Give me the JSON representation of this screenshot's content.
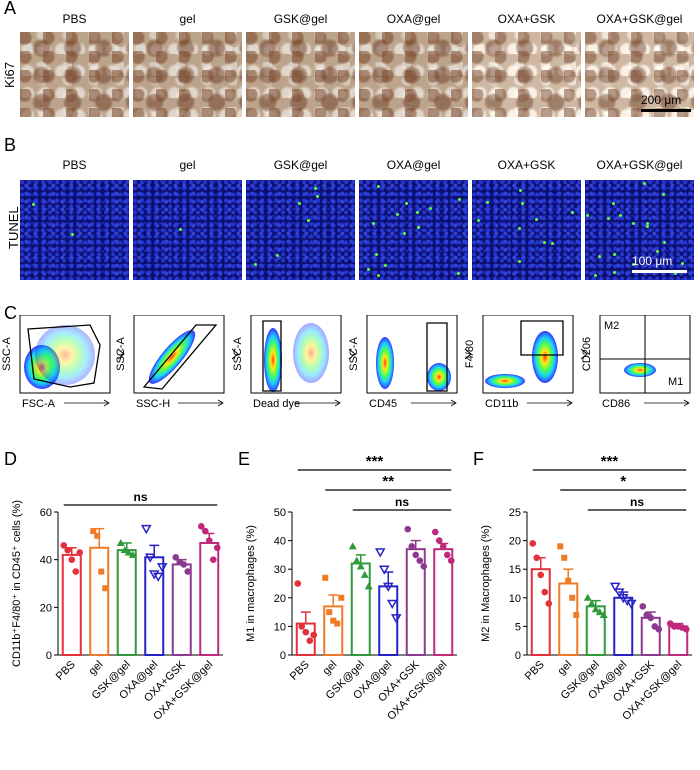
{
  "panels": {
    "A": {
      "letter": "A",
      "row_label": "Ki67",
      "titles": [
        "PBS",
        "gel",
        "GSK@gel",
        "OXA@gel",
        "OXA+GSK",
        "OXA+GSK@gel"
      ],
      "scale": "200 μm"
    },
    "B": {
      "letter": "B",
      "row_label": "TUNEL",
      "titles": [
        "PBS",
        "gel",
        "GSK@gel",
        "OXA@gel",
        "OXA+GSK",
        "OXA+GSK@gel"
      ],
      "scale": "100 μm"
    },
    "C": {
      "letter": "C",
      "plots": [
        {
          "y": "SSC-A",
          "x": "FSC-A"
        },
        {
          "y": "SSC-A",
          "x": "SSC-H"
        },
        {
          "y": "SSC-A",
          "x": "Dead dye"
        },
        {
          "y": "SSC-A",
          "x": "CD45"
        },
        {
          "y": "F4/80",
          "x": "CD11b"
        },
        {
          "y": "CD206",
          "x": "CD86",
          "q1": "M2",
          "q2": "M1"
        }
      ]
    }
  },
  "chart_data": [
    {
      "panel": "D",
      "type": "bar",
      "categories": [
        "PBS",
        "gel",
        "GSK@gel",
        "OXA@gel",
        "OXA+GSK",
        "OXA+GSK@gel"
      ],
      "values": [
        42,
        45,
        44,
        41,
        38,
        47
      ],
      "errors": [
        3,
        8,
        3,
        5,
        2,
        4
      ],
      "points": [
        [
          46,
          44,
          40,
          35,
          43
        ],
        [
          52,
          50,
          35,
          28
        ],
        [
          47,
          44,
          43,
          42
        ],
        [
          53,
          41,
          34,
          33,
          37
        ],
        [
          41,
          39,
          38,
          35
        ],
        [
          54,
          52,
          48,
          40,
          45
        ]
      ],
      "ylabel": "CD11b⁺F4/80⁺ in CD45⁺ cells (%)",
      "ylim": [
        0,
        60
      ],
      "yticks": [
        0,
        20,
        40,
        60
      ],
      "sig": [
        {
          "label": "ns",
          "from": 0,
          "to": 5
        }
      ]
    },
    {
      "panel": "E",
      "type": "bar",
      "categories": [
        "PBS",
        "gel",
        "GSK@gel",
        "OXA@gel",
        "OXA+GSK",
        "OXA+GSK@gel"
      ],
      "values": [
        11,
        17,
        32,
        24,
        37,
        37
      ],
      "errors": [
        4,
        4,
        3,
        5,
        3,
        2
      ],
      "points": [
        [
          25,
          10,
          8,
          5,
          7
        ],
        [
          27,
          15,
          12,
          11,
          20
        ],
        [
          38,
          33,
          31,
          28,
          24
        ],
        [
          36,
          30,
          24,
          18,
          13
        ],
        [
          44,
          38,
          35,
          33,
          31
        ],
        [
          43,
          40,
          38,
          35,
          33
        ]
      ],
      "ylabel": "M1 in macrophages (%)",
      "ylim": [
        0,
        50
      ],
      "yticks": [
        0,
        10,
        20,
        30,
        40,
        50
      ],
      "sig": [
        {
          "label": "***",
          "from": 0,
          "to": 5
        },
        {
          "label": "**",
          "from": 1,
          "to": 5
        },
        {
          "label": "ns",
          "from": 2,
          "to": 5
        }
      ]
    },
    {
      "panel": "F",
      "type": "bar",
      "categories": [
        "PBS",
        "gel",
        "GSK@gel",
        "OXA@gel",
        "OXA+GSK",
        "OXA+GSK@gel"
      ],
      "values": [
        15,
        12.5,
        8.5,
        10,
        6.5,
        5
      ],
      "errors": [
        2,
        2.5,
        1,
        1,
        1,
        0.5
      ],
      "points": [
        [
          19.5,
          17,
          14,
          11,
          9
        ],
        [
          19,
          17,
          13,
          10,
          7
        ],
        [
          10,
          9,
          8,
          7.5,
          7
        ],
        [
          12,
          11,
          10,
          9.5,
          9
        ],
        [
          8.5,
          7,
          6.5,
          5,
          4.5
        ],
        [
          5.5,
          5,
          5,
          4.8,
          4.5
        ]
      ],
      "ylabel": "M2 in Macrophages (%)",
      "ylim": [
        0,
        25
      ],
      "yticks": [
        0,
        5,
        10,
        15,
        20,
        25
      ],
      "sig": [
        {
          "label": "***",
          "from": 0,
          "to": 5
        },
        {
          "label": "*",
          "from": 1,
          "to": 5
        },
        {
          "label": "ns",
          "from": 2,
          "to": 5
        }
      ]
    }
  ],
  "colors": {
    "PBS": "#e3303a",
    "gel": "#f07b27",
    "GSK@gel": "#2e9a3a",
    "OXA@gel": "#2622c5",
    "OXA+GSK": "#8b3a8f",
    "OXA+GSK@gel": "#c0287a"
  }
}
